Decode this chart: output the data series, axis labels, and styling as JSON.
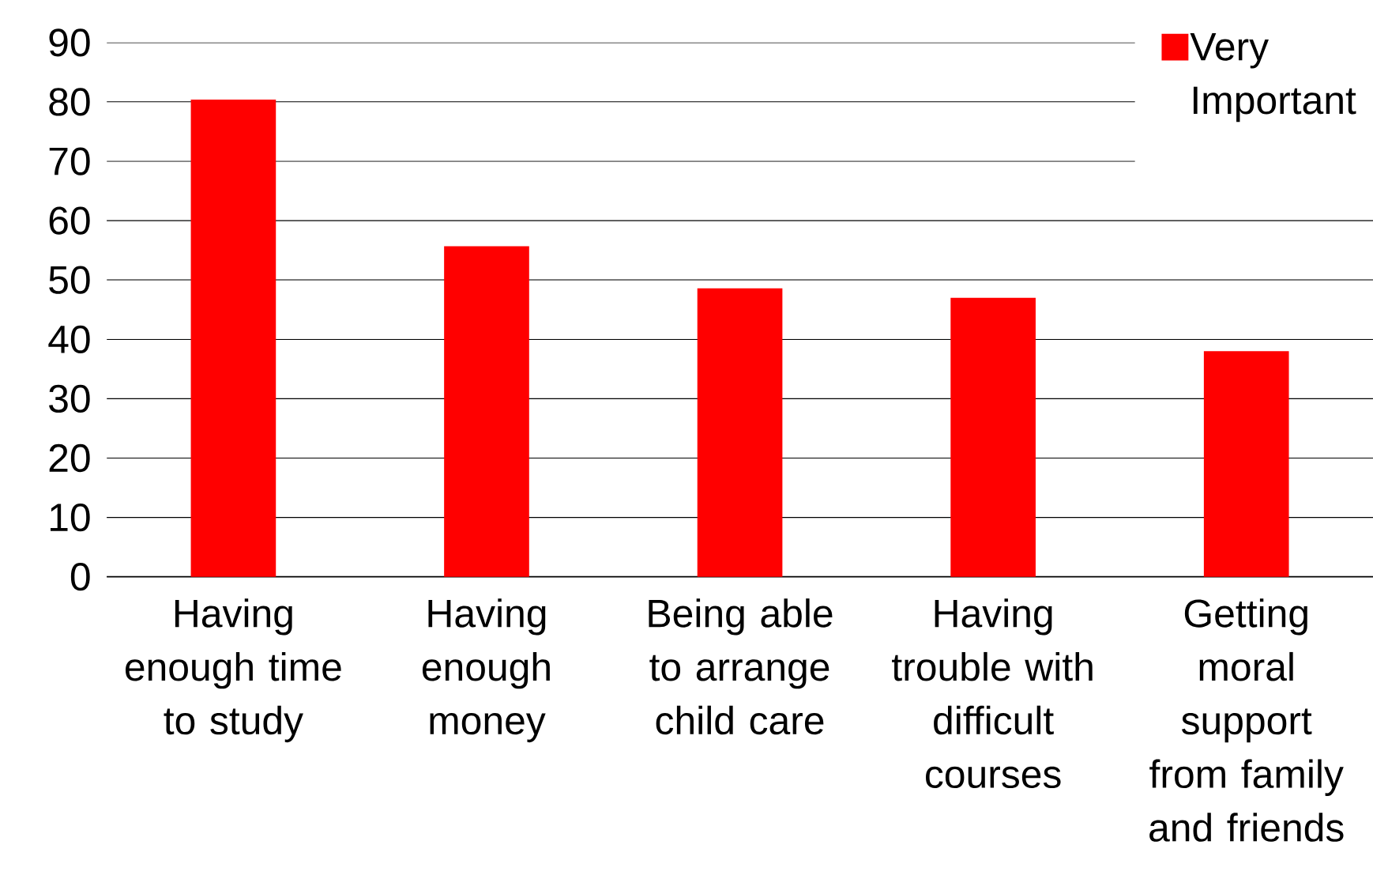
{
  "chart_data": {
    "type": "bar",
    "categories": [
      "Having enough time to study",
      "Having enough money",
      "Being able to arrange child care",
      "Having trouble with difficult courses",
      "Getting moral support from family and friends"
    ],
    "series": [
      {
        "name": "Very Important",
        "color": "#ff0000",
        "values": [
          80.4,
          55.7,
          48.6,
          47.0,
          38.0
        ]
      }
    ],
    "ylim": [
      0,
      90
    ],
    "yticks": [
      0,
      10,
      20,
      30,
      40,
      50,
      60,
      70,
      80,
      90
    ],
    "grid": "y",
    "legend": "top right"
  }
}
